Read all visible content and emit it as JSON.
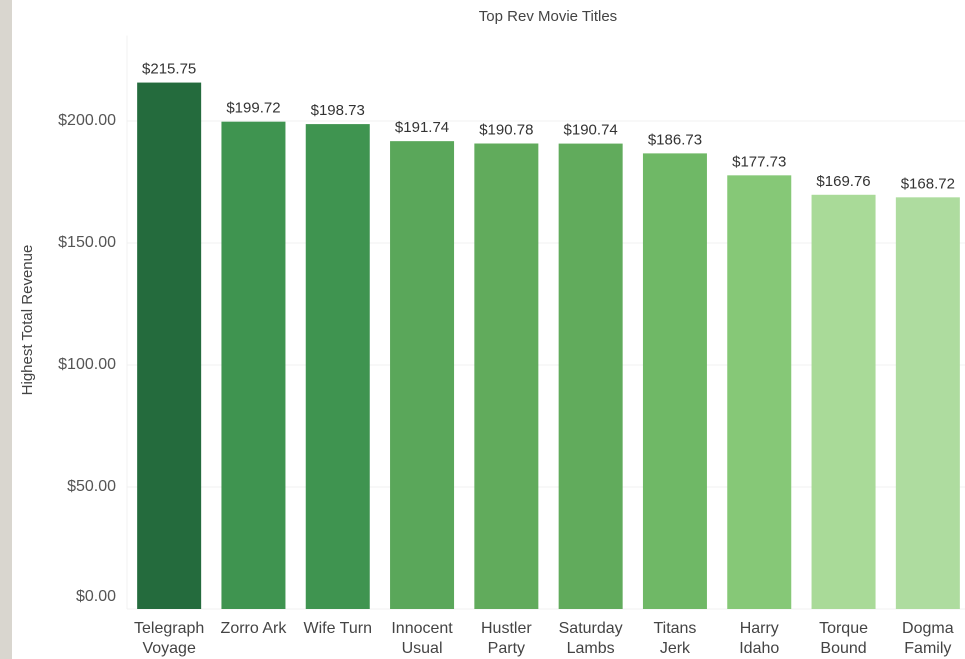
{
  "chart_data": {
    "type": "bar",
    "title": "Top Rev Movie Titles",
    "y_label": "Highest Total Revenue",
    "categories": [
      [
        "Telegraph",
        "Voyage"
      ],
      [
        "Zorro Ark"
      ],
      [
        "Wife Turn"
      ],
      [
        "Innocent",
        "Usual"
      ],
      [
        "Hustler",
        "Party"
      ],
      [
        "Saturday",
        "Lambs"
      ],
      [
        "Titans",
        "Jerk"
      ],
      [
        "Harry",
        "Idaho"
      ],
      [
        "Torque",
        "Bound"
      ],
      [
        "Dogma",
        "Family"
      ]
    ],
    "values": [
      215.75,
      199.72,
      198.73,
      191.74,
      190.78,
      190.74,
      186.73,
      177.73,
      169.76,
      168.72
    ],
    "value_labels": [
      "$215.75",
      "$199.72",
      "$198.73",
      "$191.74",
      "$190.78",
      "$190.74",
      "$186.73",
      "$177.73",
      "$169.76",
      "$168.72"
    ],
    "colors": [
      "#246b3d",
      "#3f9450",
      "#3f9450",
      "#5aa75a",
      "#61ab5c",
      "#61ab5c",
      "#6fb866",
      "#86c877",
      "#a9da98",
      "#aedc9f"
    ],
    "ylim": [
      0,
      235
    ],
    "yticks": [
      {
        "value": 0,
        "label": "$0.00"
      },
      {
        "value": 50,
        "label": "$50.00"
      },
      {
        "value": 100,
        "label": "$100.00"
      },
      {
        "value": 150,
        "label": "$150.00"
      },
      {
        "value": 200,
        "label": "$200.00"
      }
    ],
    "grid": true
  }
}
